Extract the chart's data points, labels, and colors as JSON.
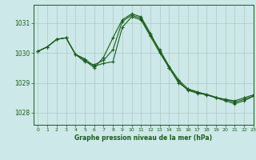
{
  "title": "Graphe pression niveau de la mer (hPa)",
  "bg_color": "#cde8e8",
  "grid_color": "#b0c8c8",
  "line_color": "#1a5c1a",
  "marker_color": "#1a5c1a",
  "xlim": [
    -0.5,
    23
  ],
  "ylim": [
    1027.6,
    1031.6
  ],
  "yticks": [
    1028,
    1029,
    1030,
    1031
  ],
  "xticks": [
    0,
    1,
    2,
    3,
    4,
    5,
    6,
    7,
    8,
    9,
    10,
    11,
    12,
    13,
    14,
    15,
    16,
    17,
    18,
    19,
    20,
    21,
    22,
    23
  ],
  "series": [
    [
      1030.05,
      1030.2,
      1030.45,
      1030.5,
      1029.95,
      1029.7,
      1029.6,
      1029.75,
      1030.1,
      1031.05,
      1031.25,
      1031.15,
      1030.6,
      1030.1,
      1029.55,
      1029.1,
      1028.8,
      1028.7,
      1028.6,
      1028.5,
      1028.45,
      1028.4,
      1028.5,
      1028.6
    ],
    [
      1030.05,
      1030.2,
      1030.45,
      1030.5,
      1029.95,
      1029.8,
      1029.55,
      1029.65,
      1029.7,
      1030.85,
      1031.2,
      1031.1,
      1030.55,
      1030.0,
      1029.5,
      1029.05,
      1028.75,
      1028.65,
      1028.6,
      1028.5,
      1028.4,
      1028.3,
      1028.4,
      1028.55
    ],
    [
      1030.05,
      1030.2,
      1030.45,
      1030.5,
      1029.95,
      1029.75,
      1029.5,
      1029.85,
      1030.5,
      1031.1,
      1031.3,
      1031.2,
      1030.65,
      1030.05,
      1029.5,
      1029.0,
      1028.78,
      1028.68,
      1028.62,
      1028.52,
      1028.44,
      1028.35,
      1028.45,
      1028.56
    ]
  ]
}
